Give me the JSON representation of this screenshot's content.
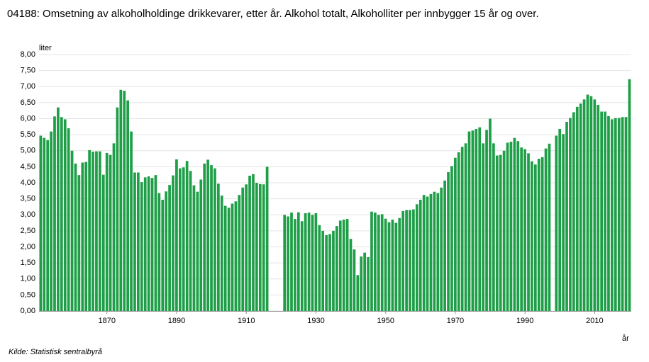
{
  "chart_data": {
    "type": "bar",
    "title": "04188: Omsetning av alkoholholdinge drikkevarer, etter år. Alkohol totalt, Alkoholliter per innbygger 15 år og over.",
    "y_label": "liter",
    "x_label": "år",
    "source": "Kilde:  Statistisk sentralbyrå",
    "color": "#1f9e48",
    "grid": true,
    "categories": [
      null,
      null,
      null,
      null,
      null,
      null,
      null,
      null,
      null,
      null,
      null,
      null,
      null,
      null,
      null,
      null,
      null,
      null,
      null,
      "1870",
      null,
      null,
      null,
      null,
      null,
      null,
      null,
      null,
      null,
      null,
      null,
      null,
      null,
      null,
      null,
      null,
      null,
      null,
      null,
      "1890",
      null,
      null,
      null,
      null,
      null,
      null,
      null,
      null,
      null,
      null,
      null,
      null,
      null,
      null,
      null,
      null,
      null,
      null,
      null,
      "1910",
      null,
      null,
      null,
      null,
      null,
      null,
      null,
      null,
      null,
      null,
      null,
      null,
      null,
      null,
      null,
      null,
      null,
      null,
      null,
      "1930",
      null,
      null,
      null,
      null,
      null,
      null,
      null,
      null,
      null,
      null,
      null,
      null,
      null,
      null,
      null,
      null,
      null,
      null,
      null,
      "1950",
      null,
      null,
      null,
      null,
      null,
      null,
      null,
      null,
      null,
      null,
      null,
      null,
      null,
      null,
      null,
      null,
      null,
      null,
      null,
      "1970",
      null,
      null,
      null,
      null,
      null,
      null,
      null,
      null,
      null,
      null,
      null,
      null,
      null,
      null,
      null,
      null,
      null,
      null,
      null,
      "1990",
      null,
      null,
      null,
      null,
      null,
      null,
      null,
      null,
      null,
      null,
      null,
      null,
      null,
      null,
      null,
      null,
      null,
      null,
      null,
      "2010",
      null,
      null,
      null,
      null,
      null,
      null,
      null,
      null,
      null,
      null
    ],
    "values": [
      5.47,
      5.4,
      5.33,
      5.6,
      6.07,
      6.35,
      6.05,
      5.98,
      5.7,
      5.0,
      4.6,
      4.24,
      4.63,
      4.65,
      5.02,
      4.97,
      4.98,
      4.98,
      4.25,
      4.93,
      4.87,
      5.23,
      6.35,
      6.9,
      6.87,
      6.57,
      5.6,
      4.32,
      4.32,
      4.02,
      4.17,
      4.2,
      4.15,
      4.24,
      3.68,
      3.47,
      3.73,
      3.93,
      4.23,
      4.73,
      4.45,
      4.48,
      4.68,
      4.37,
      3.92,
      3.72,
      4.1,
      4.6,
      4.72,
      4.55,
      4.45,
      3.97,
      3.6,
      3.28,
      3.22,
      3.35,
      3.42,
      3.62,
      3.85,
      3.95,
      4.22,
      4.27,
      4.0,
      3.96,
      3.95,
      4.5,
      null,
      null,
      null,
      null,
      3.0,
      2.95,
      3.07,
      2.87,
      3.08,
      2.8,
      3.05,
      3.07,
      3.0,
      3.05,
      2.68,
      2.5,
      2.37,
      2.4,
      2.5,
      2.65,
      2.82,
      2.85,
      2.87,
      2.25,
      1.92,
      1.12,
      1.7,
      1.82,
      1.68,
      3.1,
      3.07,
      3.0,
      3.02,
      2.88,
      2.77,
      2.85,
      2.75,
      2.9,
      3.12,
      3.15,
      3.15,
      3.17,
      3.33,
      3.47,
      3.62,
      3.57,
      3.65,
      3.72,
      3.68,
      3.85,
      4.07,
      4.33,
      4.52,
      4.78,
      4.95,
      5.12,
      5.23,
      5.6,
      5.63,
      5.68,
      5.73,
      5.23,
      5.65,
      6.0,
      5.23,
      4.85,
      4.87,
      5.0,
      5.25,
      5.28,
      5.4,
      5.3,
      5.1,
      5.05,
      4.92,
      4.67,
      4.57,
      4.75,
      4.8,
      5.07,
      5.22,
      null,
      5.47,
      5.68,
      5.52,
      5.9,
      6.02,
      6.2,
      6.37,
      6.47,
      6.6,
      6.75,
      6.7,
      6.6,
      6.43,
      6.22,
      6.22,
      6.08,
      5.98,
      6.02,
      6.02,
      6.05,
      6.05,
      7.23
    ],
    "ylim": [
      0,
      8
    ],
    "yticks": [
      {
        "value": 0,
        "label": "0,00"
      },
      {
        "value": 0.5,
        "label": "0,50"
      },
      {
        "value": 1,
        "label": "1,00"
      },
      {
        "value": 1.5,
        "label": "1,50"
      },
      {
        "value": 2,
        "label": "2,00"
      },
      {
        "value": 2.5,
        "label": "2,50"
      },
      {
        "value": 3,
        "label": "3,00"
      },
      {
        "value": 3.5,
        "label": "3,50"
      },
      {
        "value": 4,
        "label": "4,00"
      },
      {
        "value": 4.5,
        "label": "4,50"
      },
      {
        "value": 5,
        "label": "5,00"
      },
      {
        "value": 5.5,
        "label": "5,50"
      },
      {
        "value": 6,
        "label": "6,00"
      },
      {
        "value": 6.5,
        "label": "6,50"
      },
      {
        "value": 7,
        "label": "7,00"
      },
      {
        "value": 7.5,
        "label": "7,50"
      },
      {
        "value": 8,
        "label": "8,00"
      }
    ]
  }
}
